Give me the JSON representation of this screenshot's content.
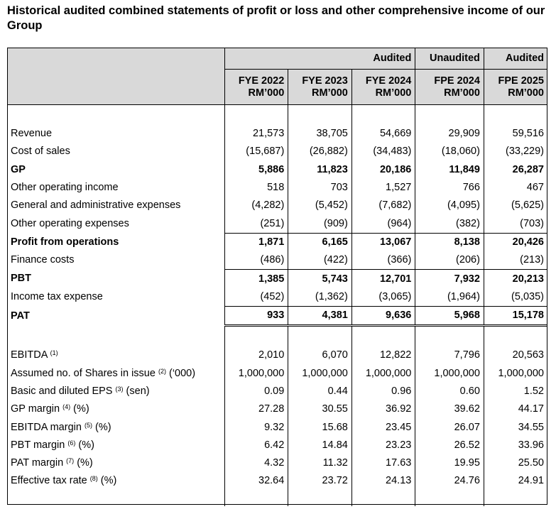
{
  "title": "Historical audited combined statements of profit or loss and other comprehensive income of our Group",
  "header": {
    "groups": [
      "Audited",
      "Unaudited",
      "Audited"
    ],
    "columns": [
      {
        "period": "FYE 2022",
        "unit": "RM’000"
      },
      {
        "period": "FYE 2023",
        "unit": "RM’000"
      },
      {
        "period": "FYE 2024",
        "unit": "RM’000"
      },
      {
        "period": "FPE 2024",
        "unit": "RM’000"
      },
      {
        "period": "FPE 2025",
        "unit": "RM’000"
      }
    ]
  },
  "rows": [
    {
      "label": "Revenue",
      "values": [
        "21,573",
        "38,705",
        "54,669",
        "29,909",
        "59,516"
      ]
    },
    {
      "label": "Cost of sales",
      "values": [
        "(15,687)",
        "(26,882)",
        "(34,483)",
        "(18,060)",
        "(33,229)"
      ]
    },
    {
      "label": "GP",
      "values": [
        "5,886",
        "11,823",
        "20,186",
        "11,849",
        "26,287"
      ]
    },
    {
      "label": "Other operating income",
      "values": [
        "518",
        "703",
        "1,527",
        "766",
        "467"
      ]
    },
    {
      "label": "General and administrative expenses",
      "values": [
        "(4,282)",
        "(5,452)",
        "(7,682)",
        "(4,095)",
        "(5,625)"
      ]
    },
    {
      "label": "Other operating expenses",
      "values": [
        "(251)",
        "(909)",
        "(964)",
        "(382)",
        "(703)"
      ]
    },
    {
      "label": "Profit from operations",
      "values": [
        "1,871",
        "6,165",
        "13,067",
        "8,138",
        "20,426"
      ]
    },
    {
      "label": "Finance costs",
      "values": [
        "(486)",
        "(422)",
        "(366)",
        "(206)",
        "(213)"
      ]
    },
    {
      "label": "PBT",
      "values": [
        "1,385",
        "5,743",
        "12,701",
        "7,932",
        "20,213"
      ]
    },
    {
      "label": "Income tax expense",
      "values": [
        "(452)",
        "(1,362)",
        "(3,065)",
        "(1,964)",
        "(5,035)"
      ]
    },
    {
      "label": "PAT",
      "values": [
        "933",
        "4,381",
        "9,636",
        "5,968",
        "15,178"
      ]
    }
  ],
  "metrics": [
    {
      "label": "EBITDA",
      "note": "(1)",
      "suffix": "",
      "values": [
        "2,010",
        "6,070",
        "12,822",
        "7,796",
        "20,563"
      ]
    },
    {
      "label": "Assumed no. of Shares in issue",
      "note": "(2)",
      "suffix": "(‘000)",
      "values": [
        "1,000,000",
        "1,000,000",
        "1,000,000",
        "1,000,000",
        "1,000,000"
      ]
    },
    {
      "label": "Basic and diluted EPS",
      "note": "(3)",
      "suffix": "(sen)",
      "values": [
        "0.09",
        "0.44",
        "0.96",
        "0.60",
        "1.52"
      ]
    },
    {
      "label": "GP margin",
      "note": "(4)",
      "suffix": "(%)",
      "values": [
        "27.28",
        "30.55",
        "36.92",
        "39.62",
        "44.17"
      ]
    },
    {
      "label": "EBITDA margin",
      "note": "(5)",
      "suffix": "(%)",
      "values": [
        "9.32",
        "15.68",
        "23.45",
        "26.07",
        "34.55"
      ]
    },
    {
      "label": "PBT margin",
      "note": "(6)",
      "suffix": "(%)",
      "values": [
        "6.42",
        "14.84",
        "23.23",
        "26.52",
        "33.96"
      ]
    },
    {
      "label": "PAT margin",
      "note": "(7)",
      "suffix": "(%)",
      "values": [
        "4.32",
        "11.32",
        "17.63",
        "19.95",
        "25.50"
      ]
    },
    {
      "label": "Effective tax rate",
      "note": "(8)",
      "suffix": "(%)",
      "values": [
        "32.64",
        "23.72",
        "24.13",
        "24.76",
        "24.91"
      ]
    }
  ]
}
